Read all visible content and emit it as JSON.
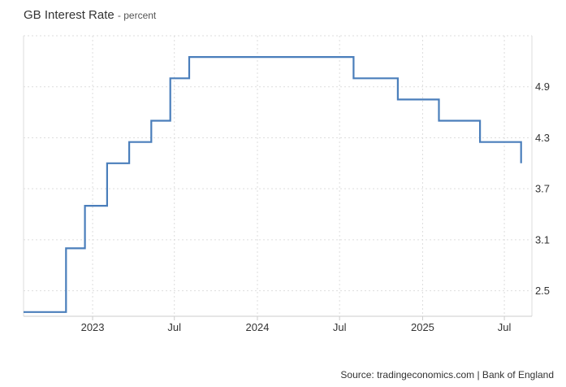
{
  "header": {
    "title": "GB Interest Rate",
    "subtitle": "- percent"
  },
  "footer": {
    "source": "Source: tradingeconomics.com | Bank of England"
  },
  "colors": {
    "line": "#4a7ebb",
    "grid": "#dddddd",
    "axis": "#cccccc"
  },
  "chart_data": {
    "type": "line",
    "step": true,
    "title": "GB Interest Rate",
    "subtitle": "- percent",
    "xlabel": "",
    "ylabel": "",
    "x_ticks": [
      {
        "label": "2023",
        "date": "2023-01-01"
      },
      {
        "label": "Jul",
        "date": "2023-07-01"
      },
      {
        "label": "2024",
        "date": "2024-01-01"
      },
      {
        "label": "Jul",
        "date": "2024-07-01"
      },
      {
        "label": "2025",
        "date": "2025-01-01"
      },
      {
        "label": "Jul",
        "date": "2025-07-01"
      }
    ],
    "y_ticks": [
      2.5,
      3.1,
      3.7,
      4.3,
      4.9
    ],
    "xlim": [
      "2022-08-01",
      "2025-08-31"
    ],
    "ylim": [
      2.2,
      5.5
    ],
    "grid": true,
    "series": [
      {
        "points": [
          {
            "x": "2022-08-01",
            "y": 2.25
          },
          {
            "x": "2022-11-03",
            "y": 3.0
          },
          {
            "x": "2022-12-15",
            "y": 3.5
          },
          {
            "x": "2023-02-02",
            "y": 4.0
          },
          {
            "x": "2023-03-23",
            "y": 4.25
          },
          {
            "x": "2023-05-11",
            "y": 4.5
          },
          {
            "x": "2023-06-22",
            "y": 5.0
          },
          {
            "x": "2023-08-03",
            "y": 5.25
          },
          {
            "x": "2024-08-01",
            "y": 5.0
          },
          {
            "x": "2024-11-07",
            "y": 4.75
          },
          {
            "x": "2025-02-06",
            "y": 4.5
          },
          {
            "x": "2025-05-08",
            "y": 4.25
          },
          {
            "x": "2025-08-07",
            "y": 4.0
          }
        ],
        "end": "2025-08-07"
      }
    ]
  }
}
